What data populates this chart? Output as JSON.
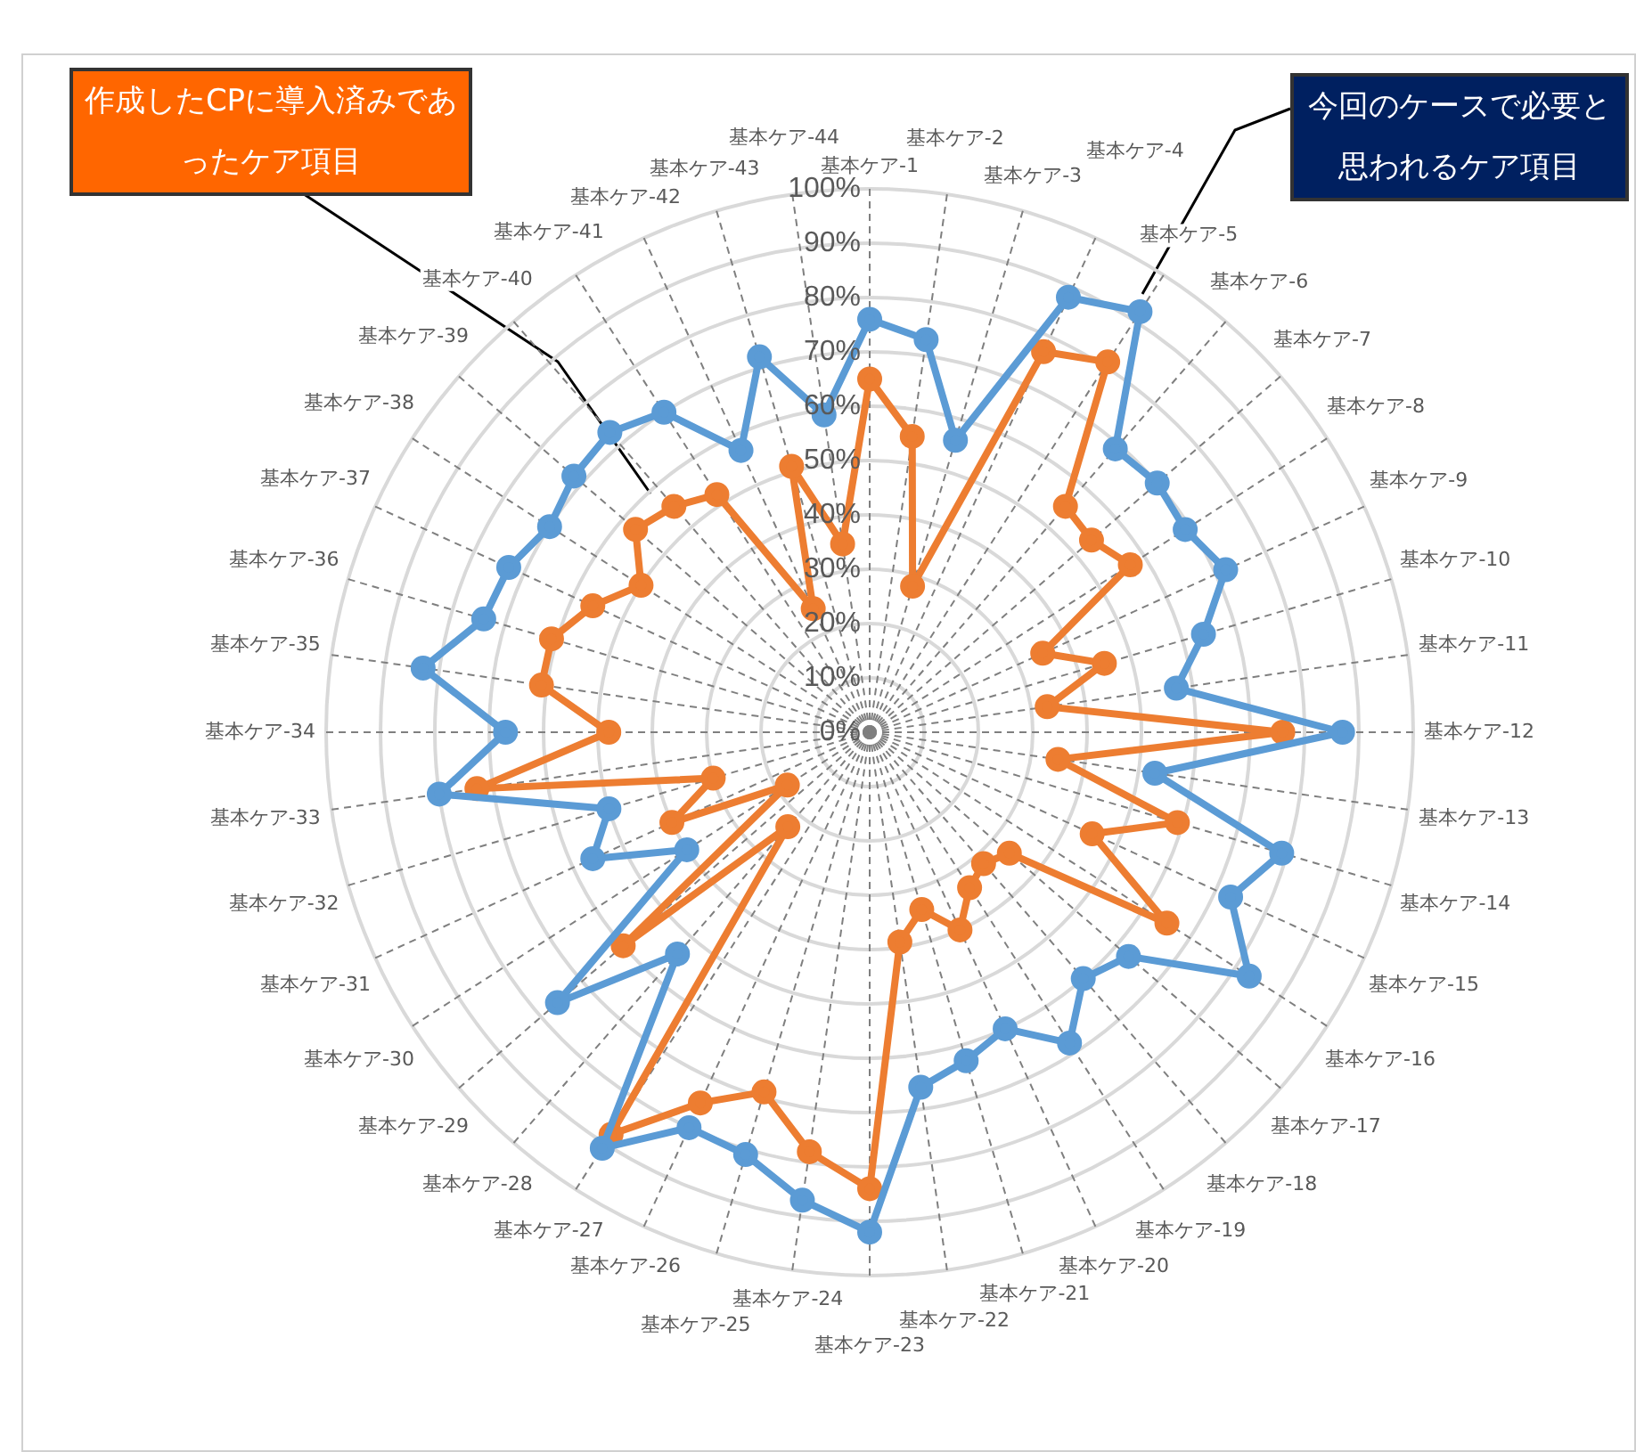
{
  "chart_data": {
    "type": "radar",
    "categories": [
      "基本ケア-1",
      "基本ケア-2",
      "基本ケア-3",
      "基本ケア-4",
      "基本ケア-5",
      "基本ケア-6",
      "基本ケア-7",
      "基本ケア-8",
      "基本ケア-9",
      "基本ケア-10",
      "基本ケア-11",
      "基本ケア-12",
      "基本ケア-13",
      "基本ケア-14",
      "基本ケア-15",
      "基本ケア-16",
      "基本ケア-17",
      "基本ケア-18",
      "基本ケア-19",
      "基本ケア-20",
      "基本ケア-21",
      "基本ケア-22",
      "基本ケア-23",
      "基本ケア-24",
      "基本ケア-25",
      "基本ケア-26",
      "基本ケア-27",
      "基本ケア-28",
      "基本ケア-29",
      "基本ケア-30",
      "基本ケア-31",
      "基本ケア-32",
      "基本ケア-33",
      "基本ケア-34",
      "基本ケア-35",
      "基本ケア-36",
      "基本ケア-37",
      "基本ケア-38",
      "基本ケア-39",
      "基本ケア-40",
      "基本ケア-41",
      "基本ケア-42",
      "基本ケア-43",
      "基本ケア-44"
    ],
    "series": [
      {
        "color": "#5b9bd5",
        "values": [
          76,
          73,
          56,
          88,
          92,
          69,
          70,
          69,
          72,
          64,
          57,
          87,
          53,
          79,
          73,
          83,
          63,
          60,
          68,
          60,
          63,
          66,
          92,
          87,
          81,
          80,
          91,
          54,
          76,
          40,
          56,
          50,
          80,
          67,
          83,
          74,
          73,
          70,
          72,
          73,
          70,
          57,
          72,
          59
        ]
      },
      {
        "color": "#ed7d31",
        "values": [
          65,
          55,
          28,
          77,
          81,
          55,
          54,
          57,
          35,
          45,
          33,
          76,
          35,
          59,
          45,
          65,
          34,
          32,
          34,
          40,
          34,
          39,
          84,
          78,
          69,
          75,
          88,
          23,
          60,
          18,
          40,
          30,
          73,
          48,
          61,
          61,
          56,
          50,
          57,
          55,
          52,
          25,
          51,
          35
        ]
      }
    ],
    "ylim": [
      0,
      100
    ],
    "yticks": [
      {
        "value": 0,
        "label": "0%"
      },
      {
        "value": 10,
        "label": "10%"
      },
      {
        "value": 20,
        "label": "20%"
      },
      {
        "value": 30,
        "label": "30%"
      },
      {
        "value": 40,
        "label": "40%"
      },
      {
        "value": 50,
        "label": "50%"
      },
      {
        "value": 60,
        "label": "60%"
      },
      {
        "value": 70,
        "label": "70%"
      },
      {
        "value": 80,
        "label": "80%"
      },
      {
        "value": 90,
        "label": "90%"
      },
      {
        "value": 100,
        "label": "100%"
      }
    ],
    "grid": true,
    "marker": "circle",
    "legend": false,
    "annotations": [
      "作成したCPに導入済みであったケア項目",
      "今回のケースで必要と思われるケア項目"
    ]
  }
}
